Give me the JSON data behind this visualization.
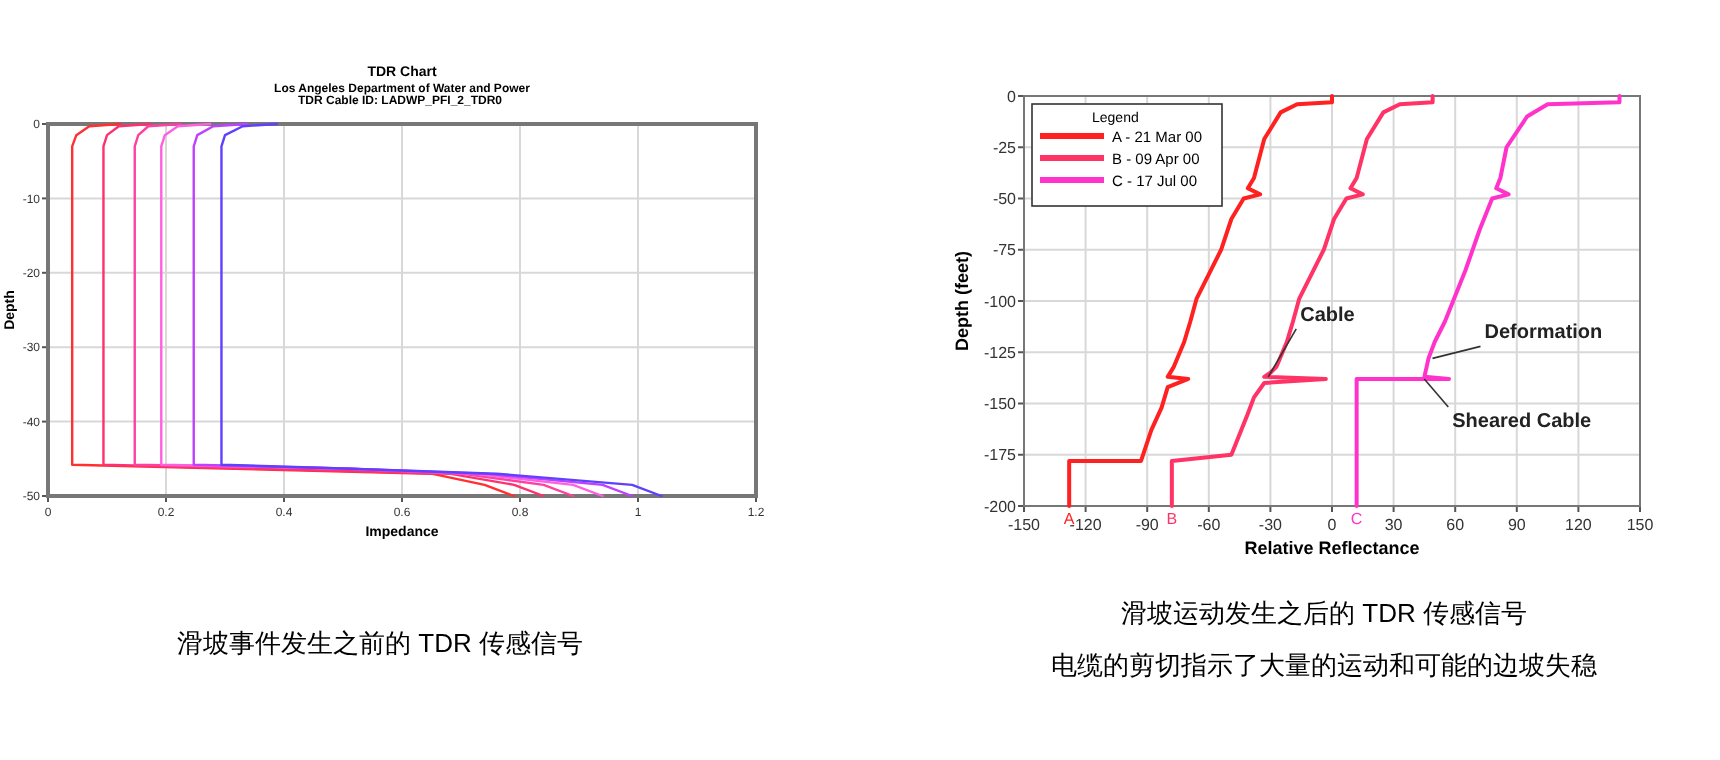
{
  "chart_data": [
    {
      "type": "line",
      "title": "TDR Chart",
      "subtitle": "Los Angeles Department of Water and Power",
      "xlabel": "Impedance",
      "ylabel": "Depth",
      "xlim": [
        0,
        1.2
      ],
      "ylim": [
        -50,
        0
      ],
      "xticks": [
        0,
        0.2,
        0.4,
        0.6,
        0.8,
        1,
        1.2
      ],
      "yticks": [
        -50,
        -40,
        -30,
        -20,
        -10,
        0
      ],
      "grid": true,
      "legend": false,
      "annotations": [
        "TDR Cable ID: LADWP_PFI_2_TDR0",
        "滑坡事件发生之前的 TDR 传感信号"
      ],
      "series": [
        {
          "color": "#ff3030",
          "x": [
            0.122,
            0.07,
            0.048,
            0.041,
            0.041,
            0.041,
            0.65,
            0.74,
            0.79
          ],
          "values": [
            0,
            -0.3,
            -1.5,
            -3,
            -20,
            -45.8,
            -47,
            -48.5,
            -50
          ]
        },
        {
          "color": "#ff3070",
          "x": [
            0.173,
            0.12,
            0.1,
            0.094,
            0.094,
            0.094,
            0.68,
            0.79,
            0.84
          ],
          "values": [
            0,
            -0.3,
            -1.5,
            -3,
            -20,
            -45.8,
            -47,
            -48.5,
            -50
          ]
        },
        {
          "color": "#ff40a0",
          "x": [
            0.224,
            0.17,
            0.153,
            0.147,
            0.147,
            0.147,
            0.5,
            0.7,
            0.84,
            0.89
          ],
          "values": [
            0,
            -0.3,
            -1.5,
            -3,
            -20,
            -45.8,
            -46.3,
            -47,
            -48.5,
            -50
          ]
        },
        {
          "color": "#ff60e0",
          "x": [
            0.275,
            0.22,
            0.198,
            0.192,
            0.192,
            0.192,
            0.5,
            0.72,
            0.89,
            0.94
          ],
          "values": [
            0,
            -0.3,
            -1.5,
            -3,
            -20,
            -45.8,
            -46.3,
            -47,
            -48.5,
            -50
          ]
        },
        {
          "color": "#c040ff",
          "x": [
            0.337,
            0.28,
            0.253,
            0.247,
            0.247,
            0.247,
            0.5,
            0.74,
            0.94,
            0.99
          ],
          "values": [
            0,
            -0.3,
            -1.5,
            -3,
            -20,
            -45.8,
            -46.3,
            -47,
            -48.5,
            -50
          ]
        },
        {
          "color": "#6040ff",
          "x": [
            0.388,
            0.33,
            0.3,
            0.294,
            0.294,
            0.294,
            0.5,
            0.76,
            0.99,
            1.04
          ],
          "values": [
            0,
            -0.3,
            -1.5,
            -3,
            -20,
            -45.8,
            -46.3,
            -47,
            -48.5,
            -50
          ]
        }
      ]
    },
    {
      "type": "line",
      "xlabel": "Relative Reflectance",
      "ylabel": "Depth (feet)",
      "xlim": [
        -150,
        150
      ],
      "ylim": [
        -200,
        0
      ],
      "xticks": [
        -150,
        -120,
        -90,
        -60,
        -30,
        0,
        30,
        60,
        90,
        120,
        150
      ],
      "yticks": [
        -200,
        -175,
        -150,
        -125,
        -100,
        -75,
        -50,
        -25,
        0
      ],
      "grid": true,
      "legend": "top left",
      "legend_title": "Legend",
      "annotations": [
        {
          "text": "Cable",
          "x": -33,
          "y": -137
        },
        {
          "text": "Deformation",
          "x": 47,
          "y": -128
        },
        {
          "text": "Sheared Cable",
          "x": 43,
          "y": -138
        },
        {
          "text": "A",
          "x": -128,
          "y": -200
        },
        {
          "text": "B",
          "x": -78,
          "y": -200
        },
        {
          "text": "C",
          "x": 12,
          "y": -200
        },
        "滑坡运动发生之后的 TDR 传感信号",
        "电缆的剪切指示了大量的运动和可能的边坡失稳"
      ],
      "series": [
        {
          "name": "A - 21 Mar 00",
          "color": "#ff2020",
          "x": [
            0,
            0,
            -17,
            -25,
            -33,
            -38,
            -41,
            -35,
            -43,
            -49,
            -54,
            -66,
            -69,
            -72,
            -77,
            -80,
            -70,
            -80,
            -83,
            -88,
            -93,
            -128,
            -128
          ],
          "values": [
            0,
            -3,
            -4,
            -8,
            -21,
            -40,
            -45,
            -48,
            -50,
            -60,
            -75,
            -99,
            -110,
            -120,
            -132,
            -137,
            -138,
            -142,
            -152,
            -163,
            -178,
            -178,
            -200
          ]
        },
        {
          "name": "B - 09 Apr 00",
          "color": "#ff3366",
          "x": [
            49,
            49,
            33,
            25,
            17,
            12,
            9,
            15,
            7,
            1,
            -4,
            -16,
            -19,
            -22,
            -27,
            -30,
            -33,
            -3,
            -33,
            -38,
            -41,
            -49,
            -78,
            -78
          ],
          "values": [
            0,
            -3,
            -4,
            -8,
            -21,
            -40,
            -45,
            -48,
            -50,
            -60,
            -75,
            -99,
            -110,
            -120,
            -132,
            -135,
            -137,
            -138,
            -140,
            -147,
            -155,
            -175,
            -178,
            -200
          ]
        },
        {
          "name": "C - 17 Jul 00",
          "color": "#ff33cc",
          "x": [
            140,
            140,
            105,
            95,
            85,
            82,
            80,
            86,
            78,
            72,
            65,
            55,
            50,
            47,
            45,
            57,
            12,
            12
          ],
          "values": [
            0,
            -3,
            -4,
            -10,
            -25,
            -40,
            -45,
            -48,
            -50,
            -65,
            -85,
            -110,
            -120,
            -128,
            -137,
            -138,
            -138,
            -200
          ]
        }
      ]
    }
  ]
}
